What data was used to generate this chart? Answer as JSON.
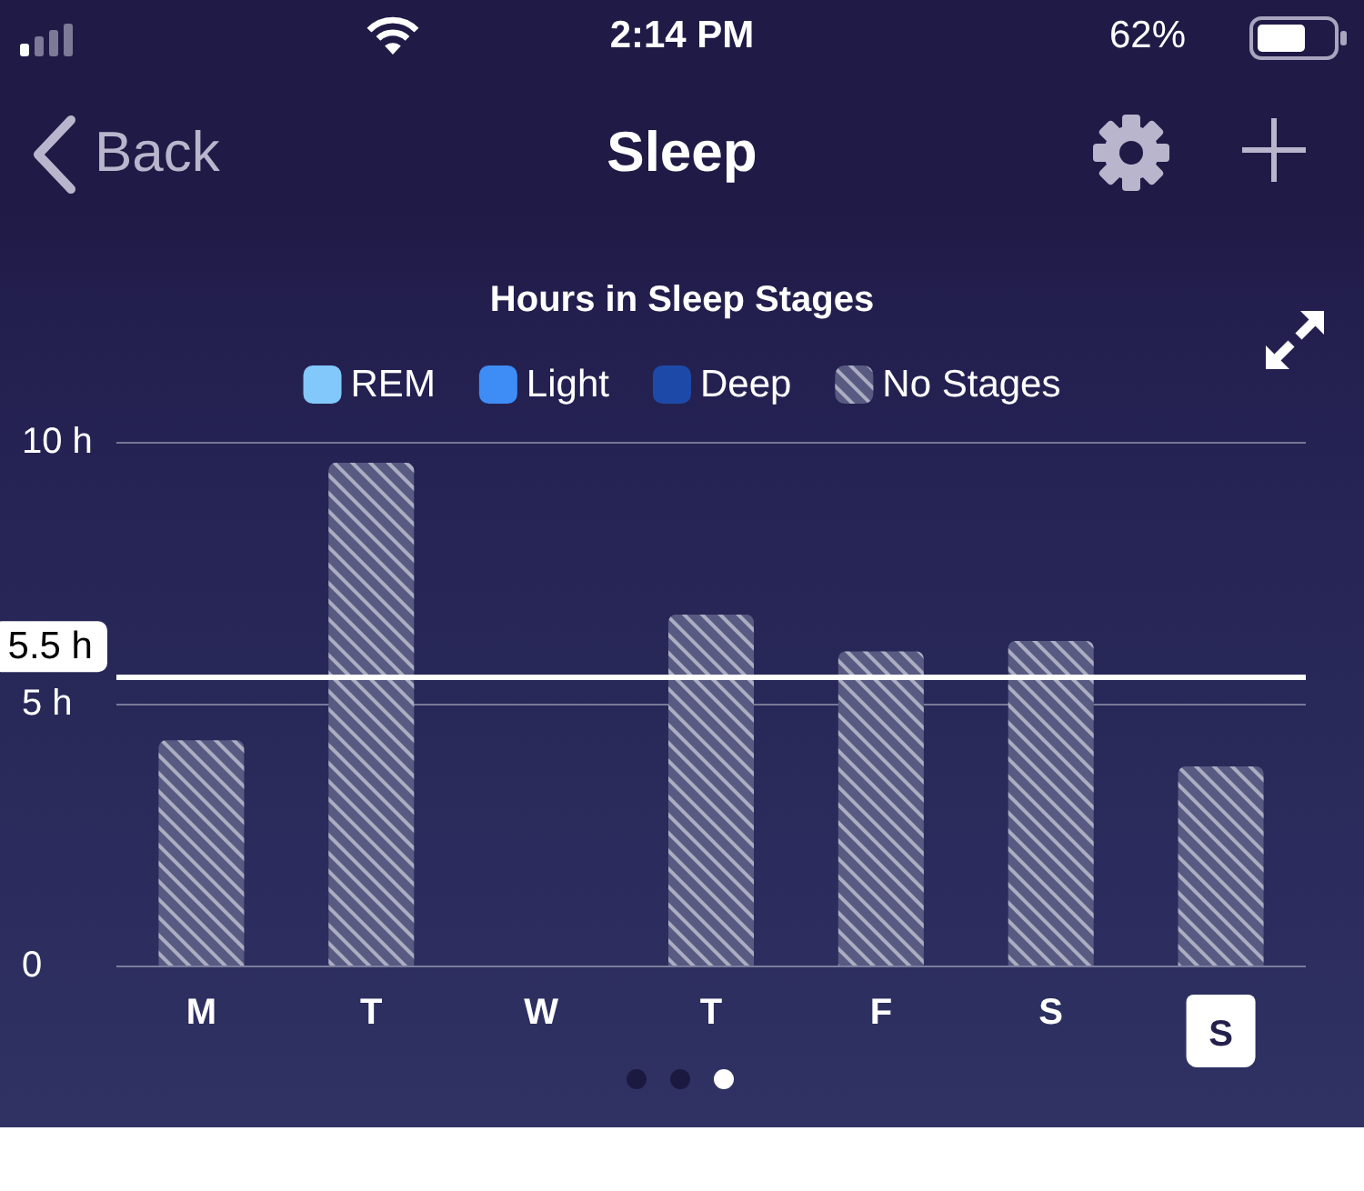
{
  "chart_data": {
    "type": "bar",
    "title": "Hours in Sleep Stages",
    "categories": [
      "M",
      "T",
      "W",
      "T",
      "F",
      "S",
      "S"
    ],
    "series": [
      {
        "name": "REM",
        "color": "#82c8fb",
        "values": [
          null,
          null,
          null,
          null,
          null,
          null,
          null
        ]
      },
      {
        "name": "Light",
        "color": "#3e8cf5",
        "values": [
          null,
          null,
          null,
          null,
          null,
          null,
          null
        ]
      },
      {
        "name": "Deep",
        "color": "#1d4aa8",
        "values": [
          null,
          null,
          null,
          null,
          null,
          null,
          null
        ]
      },
      {
        "name": "No Stages",
        "color": "#585a82",
        "values": [
          4.3,
          9.6,
          null,
          6.7,
          6.0,
          6.2,
          3.8
        ]
      }
    ],
    "stacked": true,
    "ylim": [
      0,
      10
    ],
    "yticks": [
      0,
      {
        "value": 5,
        "label": "5 h"
      },
      {
        "value": 10,
        "label": "10 h"
      }
    ],
    "ref_lines": [
      {
        "axis": "y",
        "value": 5.5,
        "label": "5.5 h",
        "color": "#ffffff"
      }
    ],
    "grid": "y",
    "legend": "top",
    "annotations": [
      "2:14 PM",
      "62%",
      "Back",
      "Sleep"
    ]
  }
}
